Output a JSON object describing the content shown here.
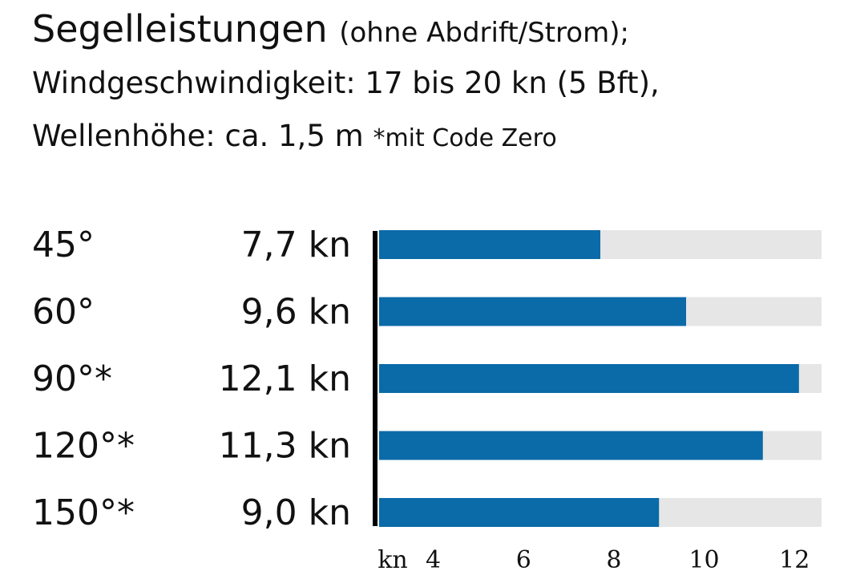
{
  "header": {
    "title": "Segelleistungen",
    "title_note": "(ohne Abdrift/Strom);",
    "line2": "Windgeschwindigkeit: 17 bis 20 kn (5 Bft),",
    "line3": "Wellenhöhe: ca. 1,5 m",
    "footnote": "*mit Code Zero"
  },
  "colors": {
    "bar": "#0b6aa8",
    "track": "#e6e6e6",
    "axis": "#000000"
  },
  "chart_data": {
    "type": "bar",
    "orientation": "horizontal",
    "categories": [
      "45°",
      "60°",
      "90°*",
      "120°*",
      "150°*"
    ],
    "values": [
      7.7,
      9.6,
      12.1,
      11.3,
      9.0
    ],
    "value_labels": [
      "7,7 kn",
      "9,6 kn",
      "12,1 kn",
      "11,3 kn",
      "9,0 kn"
    ],
    "unit": "kn",
    "xlim": [
      2.8,
      12.6
    ],
    "ticks": [
      4,
      6,
      8,
      10,
      12
    ],
    "tick_labels": [
      "kn",
      "4",
      "6",
      "8",
      "10",
      "12"
    ],
    "grid": false
  }
}
